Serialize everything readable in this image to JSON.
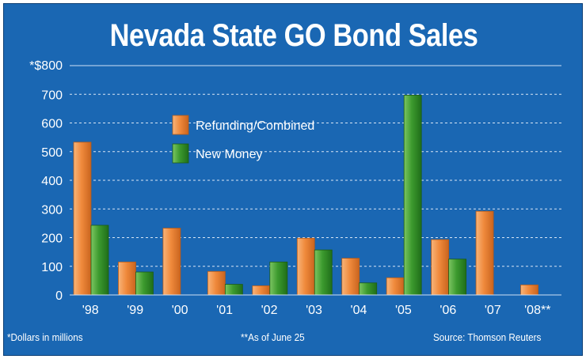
{
  "chart_data": {
    "type": "bar",
    "title": "Nevada State GO Bond Sales",
    "ylabel": "*$800",
    "ylim": [
      0,
      800
    ],
    "yticks": [
      0,
      100,
      200,
      300,
      400,
      500,
      600,
      700
    ],
    "top_tick_label": "*$800",
    "categories": [
      "'98",
      "'99",
      "'00",
      "'01",
      "'02",
      "'03",
      "'04",
      "'05",
      "'06",
      "'07",
      "'08**"
    ],
    "series": [
      {
        "name": "Refunding/Combined",
        "color": "#f08a3c",
        "values": [
          533,
          115,
          233,
          82,
          32,
          198,
          128,
          60,
          193,
          292,
          35
        ]
      },
      {
        "name": "New Money",
        "color": "#3c9a2e",
        "values": [
          243,
          80,
          0,
          37,
          115,
          157,
          42,
          697,
          125,
          0,
          0
        ]
      }
    ],
    "legend_position": "upper-left",
    "grid": true
  },
  "footnotes": {
    "left": "*Dollars in millions",
    "middle": "**As of June 25",
    "right": "Source: Thomson Reuters"
  }
}
